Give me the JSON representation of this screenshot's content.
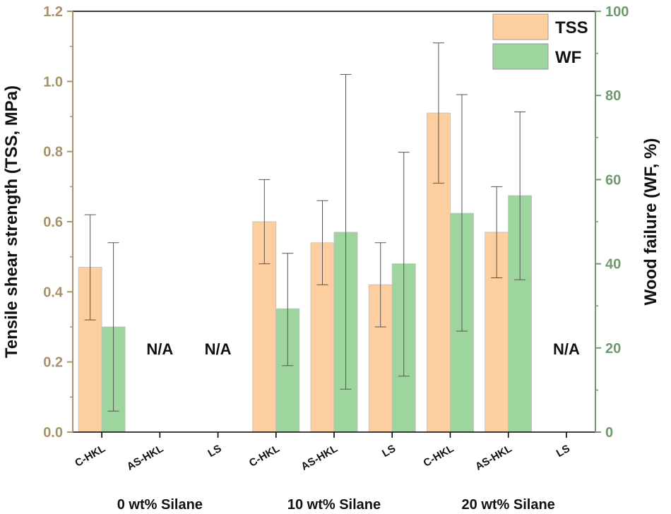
{
  "chart_data": {
    "type": "bar",
    "categories": [
      "C-HKL",
      "AS-HKL",
      "LS",
      "C-HKL",
      "AS-HKL",
      "LS",
      "C-HKL",
      "AS-HKL",
      "LS"
    ],
    "groups": [
      {
        "label": "0 wt% Silane",
        "categories": [
          0,
          1,
          2
        ]
      },
      {
        "label": "10 wt% Silane",
        "categories": [
          3,
          4,
          5
        ]
      },
      {
        "label": "20 wt% Silane",
        "categories": [
          6,
          7,
          8
        ]
      }
    ],
    "series": [
      {
        "name": "TSS",
        "axis": "left",
        "color": "#FDCFA0",
        "values": [
          0.47,
          null,
          null,
          0.6,
          0.54,
          0.42,
          0.91,
          0.57,
          null
        ],
        "error_low": [
          0.32,
          null,
          null,
          0.48,
          0.42,
          0.3,
          0.71,
          0.44,
          null
        ],
        "error_high": [
          0.62,
          null,
          null,
          0.72,
          0.66,
          0.54,
          1.11,
          0.7,
          null
        ]
      },
      {
        "name": "WF",
        "axis": "right",
        "color": "#9ED49E",
        "values": [
          25,
          null,
          null,
          29.3,
          47.5,
          40,
          52,
          56.2,
          null
        ],
        "error_low": [
          5,
          null,
          null,
          15.8,
          10.2,
          13.3,
          24,
          36.2,
          null
        ],
        "error_high": [
          45,
          null,
          null,
          42.5,
          85,
          66.5,
          80.2,
          76.1,
          null
        ]
      }
    ],
    "na_labels": [
      {
        "category": 1,
        "text": "N/A"
      },
      {
        "category": 2,
        "text": "N/A"
      },
      {
        "category": 8,
        "text": "N/A"
      }
    ],
    "y_left": {
      "label": "Tensile shear strength (TSS, MPa)",
      "lim": [
        0,
        1.2
      ],
      "ticks": [
        "0.0",
        "0.2",
        "0.4",
        "0.6",
        "0.8",
        "1.0",
        "1.2"
      ],
      "color": "#A8926A"
    },
    "y_right": {
      "label": "Wood failure (WF, %)",
      "lim": [
        0,
        100
      ],
      "ticks": [
        "0",
        "20",
        "40",
        "60",
        "80",
        "100"
      ],
      "color": "#6E9A6E"
    },
    "legend": {
      "position": "top-right",
      "entries": [
        "TSS",
        "WF"
      ]
    },
    "grid": false
  }
}
